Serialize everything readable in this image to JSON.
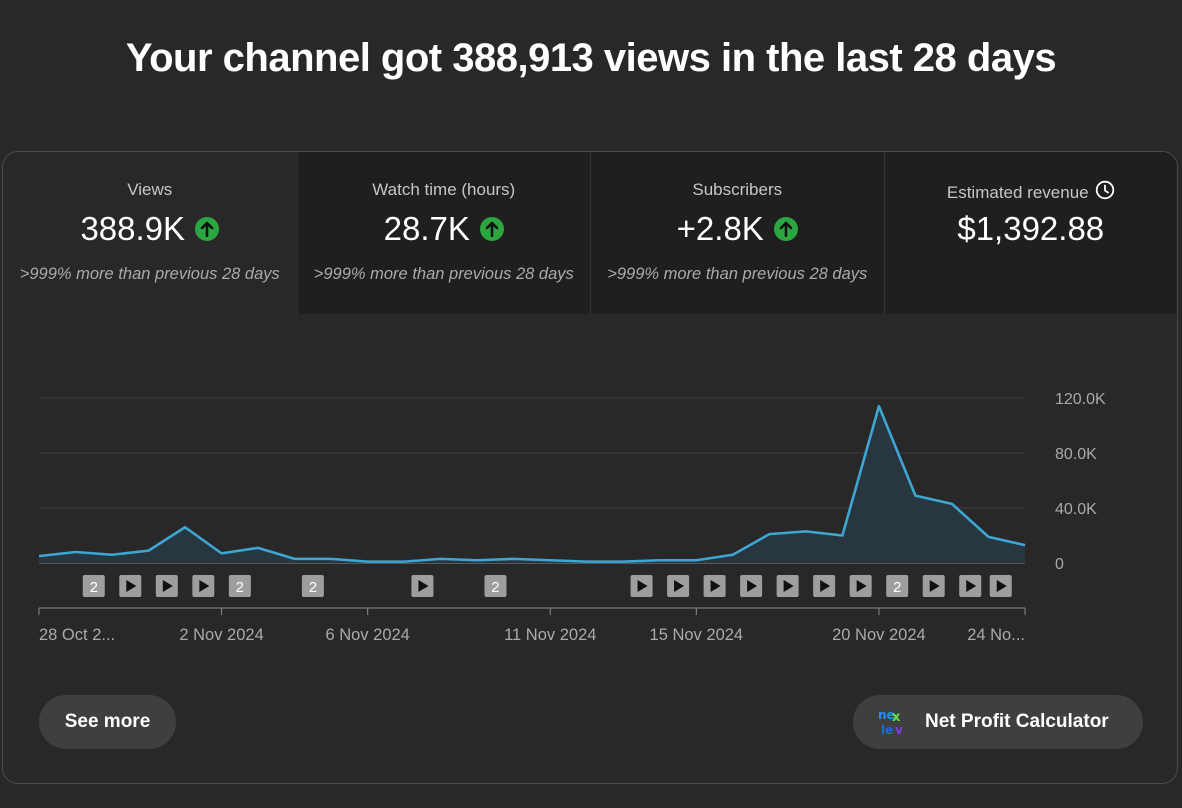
{
  "headline": "Your channel got 388,913 views in the last 28 days",
  "metrics": [
    {
      "label": "Views",
      "value": "388.9K",
      "change": ">999% more than previous 28 days",
      "trend": "up"
    },
    {
      "label": "Watch time (hours)",
      "value": "28.7K",
      "change": ">999% more than previous 28 days",
      "trend": "up"
    },
    {
      "label": "Subscribers",
      "value": "+2.8K",
      "change": ">999% more than previous 28 days",
      "trend": "up"
    },
    {
      "label": "Estimated revenue",
      "value": "$1,392.88",
      "icon": "clock-icon"
    }
  ],
  "chart_data": {
    "type": "area",
    "series": [
      {
        "values": [
          5000,
          8000,
          6000,
          9000,
          26000,
          7000,
          11000,
          3000,
          3000,
          1000,
          1000,
          3000,
          2000,
          3000,
          2000,
          1000,
          1000,
          2000,
          2000,
          6000,
          21000,
          23000,
          20000,
          114000,
          49000,
          43000,
          19000,
          13000
        ]
      }
    ],
    "x_tick_labels": [
      "28 Oct 2...",
      "2 Nov 2024",
      "6 Nov 2024",
      "11 Nov 2024",
      "15 Nov 2024",
      "20 Nov 2024",
      "24 No..."
    ],
    "y_tick_labels": [
      "120.0K",
      "80.0K",
      "40.0K",
      "0"
    ],
    "ylim": [
      0,
      120000
    ],
    "grid": true,
    "colors": {
      "line": "#3ea6d3",
      "fill": "#283640",
      "grid": "#3e3e3e"
    },
    "video_markers": [
      {
        "type": "count",
        "label": "2"
      },
      {
        "type": "play"
      },
      {
        "type": "play"
      },
      {
        "type": "play"
      },
      {
        "type": "count",
        "label": "2"
      },
      {
        "type": "count",
        "label": "2"
      },
      {
        "type": "play"
      },
      {
        "type": "count",
        "label": "2"
      },
      {
        "type": "play"
      },
      {
        "type": "play"
      },
      {
        "type": "play"
      },
      {
        "type": "play"
      },
      {
        "type": "play"
      },
      {
        "type": "play"
      },
      {
        "type": "play"
      },
      {
        "type": "count",
        "label": "2"
      },
      {
        "type": "play"
      },
      {
        "type": "play"
      },
      {
        "type": "play"
      }
    ]
  },
  "buttons": {
    "see_more": "See more",
    "net_profit": "Net Profit Calculator"
  }
}
